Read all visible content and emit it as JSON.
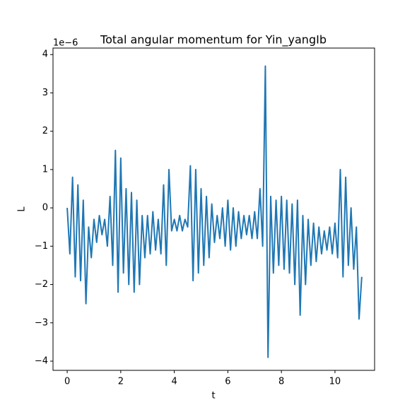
{
  "chart_data": {
    "type": "line",
    "title": "Total angular momentum for Yin_yangIb",
    "x_label": "t",
    "y_label": "L",
    "y_offset_label": "1e−6",
    "x": [
      0,
      0.1,
      0.2,
      0.3,
      0.4,
      0.5,
      0.6,
      0.7,
      0.8,
      0.9,
      1,
      1.1,
      1.2,
      1.3,
      1.4,
      1.5,
      1.6,
      1.7,
      1.8,
      1.9,
      2,
      2.1,
      2.2,
      2.3,
      2.4,
      2.5,
      2.6,
      2.7,
      2.8,
      2.9,
      3,
      3.1,
      3.2,
      3.3,
      3.4,
      3.5,
      3.6,
      3.7,
      3.8,
      3.9,
      4,
      4.1,
      4.2,
      4.3,
      4.4,
      4.5,
      4.6,
      4.7,
      4.8,
      4.9,
      5,
      5.1,
      5.2,
      5.3,
      5.4,
      5.5,
      5.6,
      5.7,
      5.8,
      5.9,
      6,
      6.1,
      6.2,
      6.3,
      6.4,
      6.5,
      6.6,
      6.7,
      6.8,
      6.9,
      7,
      7.1,
      7.2,
      7.3,
      7.4,
      7.5,
      7.6,
      7.7,
      7.8,
      7.9,
      8,
      8.1,
      8.2,
      8.3,
      8.4,
      8.5,
      8.6,
      8.7,
      8.8,
      8.9,
      9,
      9.1,
      9.2,
      9.3,
      9.4,
      9.5,
      9.6,
      9.7,
      9.8,
      9.9,
      10,
      10.1,
      10.2,
      10.3,
      10.4,
      10.5,
      10.6,
      10.7,
      10.8,
      10.9,
      11
    ],
    "series": [
      {
        "name": "L",
        "color": "#1f77b4",
        "values": [
          0,
          -1.2,
          0.8,
          -1.8,
          0.6,
          -1.9,
          0.2,
          -2.5,
          -0.5,
          -1.3,
          -0.3,
          -0.9,
          -0.2,
          -0.7,
          -0.3,
          -1.0,
          0.3,
          -1.5,
          1.5,
          -2.2,
          1.3,
          -1.7,
          0.5,
          -2.0,
          0.4,
          -2.2,
          0.2,
          -2.0,
          -0.2,
          -1.3,
          -0.2,
          -1.2,
          -0.1,
          -1.1,
          -0.3,
          -1.2,
          0.6,
          -1.5,
          1.0,
          -0.6,
          -0.3,
          -0.6,
          -0.2,
          -0.6,
          -0.3,
          -0.5,
          1.1,
          -1.9,
          1.0,
          -1.7,
          0.5,
          -1.5,
          0.3,
          -1.3,
          0.1,
          -0.9,
          -0.2,
          -0.8,
          0.0,
          -1.0,
          0.2,
          -1.1,
          0.0,
          -1.0,
          -0.1,
          -0.8,
          -0.2,
          -0.7,
          -0.2,
          -0.8,
          -0.1,
          -0.8,
          0.5,
          -1.0,
          3.7,
          -3.9,
          0.3,
          -1.7,
          0.2,
          -1.5,
          0.3,
          -1.6,
          0.2,
          -1.7,
          0.1,
          -2.0,
          0.2,
          -2.8,
          -0.2,
          -2.0,
          -0.3,
          -1.5,
          -0.4,
          -1.4,
          -0.5,
          -1.2,
          -0.6,
          -1.1,
          -0.5,
          -1.2,
          -0.4,
          -1.3,
          1.0,
          -1.8,
          0.8,
          -1.5,
          0.0,
          -1.6,
          -0.5,
          -2.9,
          -1.8
        ]
      }
    ],
    "xlim": [
      -0.53,
      11.48
    ],
    "ylim": [
      -4.24,
      4.17
    ],
    "xticks": [
      0,
      2,
      4,
      6,
      8,
      10
    ],
    "yticks": [
      {
        "value": -4,
        "label": "−4"
      },
      {
        "value": -3,
        "label": "−3"
      },
      {
        "value": -2,
        "label": "−2"
      },
      {
        "value": -1,
        "label": "−1"
      },
      0,
      1,
      2,
      3,
      4
    ],
    "grid": false
  }
}
